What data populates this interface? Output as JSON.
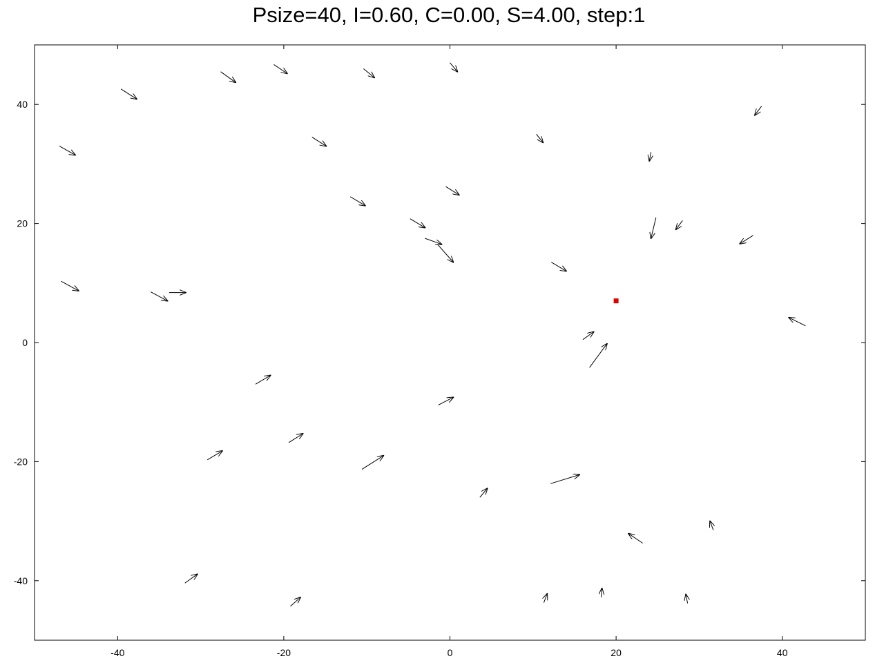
{
  "chart_data": {
    "type": "quiver",
    "title": "Psize=40, I=0.60, C=0.00, S=4.00, step:1",
    "xlim": [
      -50,
      50
    ],
    "ylim": [
      -50,
      50
    ],
    "xticks": [
      -40,
      -20,
      0,
      20,
      40
    ],
    "yticks": [
      -40,
      -20,
      0,
      20,
      40
    ],
    "xtick_labels": [
      "-40",
      "-20",
      "0",
      "20",
      "40"
    ],
    "ytick_labels": [
      "-40",
      "-20",
      "0",
      "20",
      "40"
    ],
    "grid": false,
    "colors": {
      "arrow": "#000000",
      "marker": "#e00000",
      "axes": "#000000"
    },
    "target_point": {
      "x": 20.0,
      "y": 7.0
    },
    "arrows": [
      {
        "x": -39.6,
        "y": 42.6,
        "dx": 1.9,
        "dy": -1.7
      },
      {
        "x": -27.6,
        "y": 45.5,
        "dx": 1.8,
        "dy": -1.8
      },
      {
        "x": -21.2,
        "y": 46.7,
        "dx": 1.6,
        "dy": -1.5
      },
      {
        "x": -10.4,
        "y": 46.0,
        "dx": 1.3,
        "dy": -1.5
      },
      {
        "x": 0.0,
        "y": 47.0,
        "dx": 0.9,
        "dy": -1.5
      },
      {
        "x": 37.5,
        "y": 39.7,
        "dx": -0.8,
        "dy": -1.5
      },
      {
        "x": -47.0,
        "y": 33.0,
        "dx": 1.9,
        "dy": -1.5
      },
      {
        "x": -16.6,
        "y": 34.5,
        "dx": 1.7,
        "dy": -1.5
      },
      {
        "x": 10.4,
        "y": 35.0,
        "dx": 0.8,
        "dy": -1.4
      },
      {
        "x": 24.2,
        "y": 32.0,
        "dx": -0.2,
        "dy": -1.5
      },
      {
        "x": -0.5,
        "y": 26.2,
        "dx": 1.6,
        "dy": -1.4
      },
      {
        "x": -12.0,
        "y": 24.5,
        "dx": 1.8,
        "dy": -1.5
      },
      {
        "x": -4.8,
        "y": 20.8,
        "dx": 1.8,
        "dy": -1.5
      },
      {
        "x": 24.8,
        "y": 21.0,
        "dx": -0.6,
        "dy": -3.5
      },
      {
        "x": 28.0,
        "y": 20.5,
        "dx": -0.8,
        "dy": -1.5
      },
      {
        "x": 36.5,
        "y": 18.0,
        "dx": -1.6,
        "dy": -1.4
      },
      {
        "x": -3.0,
        "y": 17.5,
        "dx": 2.0,
        "dy": -1.0
      },
      {
        "x": -1.5,
        "y": 16.5,
        "dx": 1.9,
        "dy": -3.0
      },
      {
        "x": 12.2,
        "y": 13.5,
        "dx": 1.8,
        "dy": -1.5
      },
      {
        "x": -46.8,
        "y": 10.3,
        "dx": 2.1,
        "dy": -1.6
      },
      {
        "x": -36.0,
        "y": 8.5,
        "dx": 2.0,
        "dy": -1.5
      },
      {
        "x": -33.8,
        "y": 8.4,
        "dx": 2.0,
        "dy": 0.0
      },
      {
        "x": 42.8,
        "y": 2.8,
        "dx": -2.0,
        "dy": 1.4
      },
      {
        "x": 16.0,
        "y": 0.5,
        "dx": 1.3,
        "dy": 1.3
      },
      {
        "x": 16.8,
        "y": -4.2,
        "dx": 2.1,
        "dy": 4.0
      },
      {
        "x": -23.4,
        "y": -7.0,
        "dx": 1.8,
        "dy": 1.5
      },
      {
        "x": -1.4,
        "y": -10.5,
        "dx": 1.8,
        "dy": 1.3
      },
      {
        "x": -19.4,
        "y": -16.8,
        "dx": 1.7,
        "dy": 1.5
      },
      {
        "x": -29.2,
        "y": -19.7,
        "dx": 1.8,
        "dy": 1.5
      },
      {
        "x": -10.6,
        "y": -21.3,
        "dx": 2.6,
        "dy": 2.3
      },
      {
        "x": 12.1,
        "y": -23.7,
        "dx": 3.5,
        "dy": 1.5
      },
      {
        "x": 3.6,
        "y": -26.0,
        "dx": 0.9,
        "dy": 1.5
      },
      {
        "x": 31.7,
        "y": -31.5,
        "dx": -0.4,
        "dy": 1.5
      },
      {
        "x": 23.2,
        "y": -33.7,
        "dx": -1.7,
        "dy": 1.6
      },
      {
        "x": -31.9,
        "y": -40.4,
        "dx": 1.5,
        "dy": 1.5
      },
      {
        "x": -19.2,
        "y": -44.3,
        "dx": 1.2,
        "dy": 1.5
      },
      {
        "x": 11.3,
        "y": -43.7,
        "dx": 0.4,
        "dy": 1.5
      },
      {
        "x": 18.2,
        "y": -42.8,
        "dx": 0.1,
        "dy": 1.5
      },
      {
        "x": 28.6,
        "y": -43.8,
        "dx": -0.2,
        "dy": 1.5
      }
    ]
  }
}
